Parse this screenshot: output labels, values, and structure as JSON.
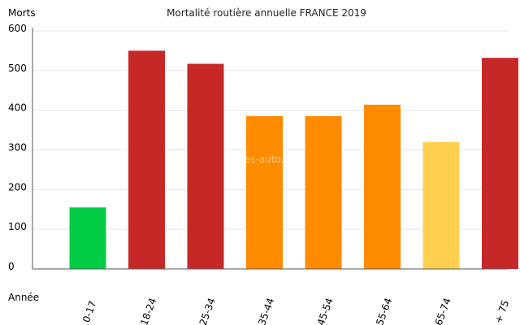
{
  "chart_data": {
    "type": "bar",
    "title": "Mortalité routière annuelle FRANCE 2019",
    "ylabel": "Morts",
    "xlabel": "Année",
    "categories": [
      "0-17",
      "18-24",
      "25-34",
      "35-44",
      "45-54",
      "55-64",
      "65-74",
      "+ 75"
    ],
    "values": [
      155,
      550,
      517,
      385,
      385,
      414,
      320,
      532
    ],
    "bar_colors": [
      "#00cc44",
      "#c62828",
      "#c62828",
      "#ff8c00",
      "#ff8c00",
      "#ff8c00",
      "#ffd050",
      "#c62828"
    ],
    "ylim": [
      0,
      600
    ],
    "yticks": [
      0,
      100,
      200,
      300,
      400,
      500,
      600
    ],
    "grid": true,
    "watermark": "Fiches-auto.fr"
  }
}
